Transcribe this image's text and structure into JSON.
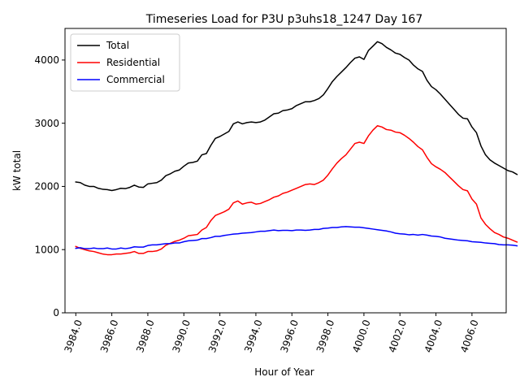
{
  "chart_data": {
    "type": "line",
    "title": "Timeseries Load for P3U p3uhs18_1247  Day 167",
    "xlabel": "Hour of Year",
    "ylabel": "kW total",
    "xlim": [
      3983.4,
      4007.9
    ],
    "ylim": [
      0,
      4500
    ],
    "xticks": [
      3984,
      3986,
      3988,
      3990,
      3992,
      3994,
      3996,
      3998,
      4000,
      4002,
      4004,
      4006
    ],
    "xtick_labels": [
      "3984.0",
      "3986.0",
      "3988.0",
      "3990.0",
      "3992.0",
      "3994.0",
      "3996.0",
      "3998.0",
      "4000.0",
      "4002.0",
      "4004.0",
      "4006.0"
    ],
    "yticks": [
      0,
      1000,
      2000,
      3000,
      4000
    ],
    "ytick_labels": [
      "0",
      "1000",
      "2000",
      "3000",
      "4000"
    ],
    "grid": false,
    "legend_position": "top-left",
    "x_start": 3984.0,
    "x_step": 0.25,
    "series": [
      {
        "name": "Total",
        "color": "#000000",
        "values": [
          2070,
          2060,
          2020,
          2000,
          2000,
          1970,
          1955,
          1950,
          1935,
          1950,
          1970,
          1965,
          1985,
          2020,
          1990,
          1985,
          2040,
          2050,
          2060,
          2100,
          2170,
          2200,
          2240,
          2260,
          2320,
          2370,
          2380,
          2400,
          2500,
          2520,
          2650,
          2760,
          2790,
          2830,
          2870,
          2990,
          3020,
          2990,
          3010,
          3020,
          3010,
          3020,
          3050,
          3100,
          3150,
          3160,
          3200,
          3210,
          3230,
          3280,
          3310,
          3340,
          3340,
          3360,
          3390,
          3450,
          3550,
          3660,
          3740,
          3810,
          3880,
          3960,
          4030,
          4050,
          4010,
          4150,
          4220,
          4290,
          4260,
          4200,
          4160,
          4110,
          4090,
          4040,
          4000,
          3920,
          3860,
          3820,
          3680,
          3580,
          3530,
          3460,
          3380,
          3300,
          3220,
          3140,
          3080,
          3070,
          2940,
          2850,
          2640,
          2500,
          2420,
          2370,
          2330,
          2290,
          2250,
          2230,
          2190
        ]
      },
      {
        "name": "Residential",
        "color": "#ff0000",
        "values": [
          1050,
          1020,
          1000,
          980,
          970,
          950,
          930,
          920,
          920,
          930,
          930,
          940,
          950,
          970,
          940,
          940,
          970,
          970,
          980,
          1010,
          1070,
          1100,
          1130,
          1150,
          1180,
          1220,
          1230,
          1240,
          1310,
          1350,
          1460,
          1540,
          1570,
          1600,
          1640,
          1740,
          1770,
          1720,
          1740,
          1750,
          1720,
          1730,
          1760,
          1790,
          1830,
          1850,
          1890,
          1910,
          1940,
          1970,
          2000,
          2030,
          2040,
          2030,
          2060,
          2100,
          2180,
          2280,
          2370,
          2440,
          2500,
          2590,
          2680,
          2700,
          2680,
          2800,
          2890,
          2960,
          2940,
          2900,
          2890,
          2860,
          2850,
          2810,
          2760,
          2700,
          2630,
          2580,
          2460,
          2360,
          2310,
          2270,
          2220,
          2150,
          2080,
          2010,
          1950,
          1930,
          1800,
          1720,
          1500,
          1400,
          1330,
          1270,
          1240,
          1200,
          1180,
          1150,
          1120
        ]
      },
      {
        "name": "Commercial",
        "color": "#0000ff",
        "values": [
          1020,
          1030,
          1015,
          1015,
          1025,
          1015,
          1015,
          1025,
          1010,
          1010,
          1025,
          1015,
          1025,
          1045,
          1040,
          1040,
          1065,
          1075,
          1075,
          1085,
          1095,
          1095,
          1105,
          1105,
          1125,
          1140,
          1145,
          1150,
          1175,
          1175,
          1190,
          1210,
          1210,
          1225,
          1235,
          1245,
          1250,
          1260,
          1265,
          1270,
          1280,
          1290,
          1290,
          1300,
          1310,
          1300,
          1305,
          1305,
          1300,
          1310,
          1310,
          1305,
          1310,
          1320,
          1320,
          1335,
          1340,
          1350,
          1350,
          1360,
          1365,
          1360,
          1355,
          1355,
          1345,
          1335,
          1325,
          1315,
          1305,
          1295,
          1280,
          1260,
          1250,
          1245,
          1235,
          1240,
          1230,
          1240,
          1230,
          1215,
          1210,
          1200,
          1180,
          1170,
          1160,
          1150,
          1145,
          1140,
          1125,
          1120,
          1115,
          1105,
          1100,
          1095,
          1080,
          1075,
          1075,
          1070,
          1060
        ]
      }
    ]
  }
}
